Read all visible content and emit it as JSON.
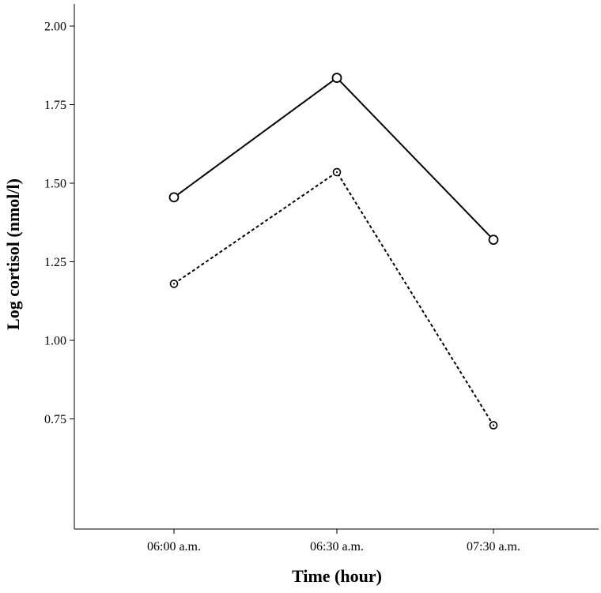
{
  "chart_data": {
    "type": "line",
    "xlabel": "Time (hour)",
    "ylabel": "Log cortisol (nmol/l)",
    "categories": [
      "06:00 a.m.",
      "06:30 a.m.",
      "07:30 a.m."
    ],
    "ylim": [
      0.4,
      2.07
    ],
    "yticks": [
      0.75,
      1.0,
      1.25,
      1.5,
      1.75,
      2.0
    ],
    "ytick_labels": [
      "0.75",
      "1.00",
      "1.25",
      "1.50",
      "1.75",
      "2.00"
    ],
    "grid": false,
    "legend": "none",
    "series": [
      {
        "values": [
          1.455,
          1.835,
          1.32
        ],
        "line_style": "solid",
        "marker": "open-circle",
        "color": "#000000"
      },
      {
        "values": [
          1.18,
          1.535,
          0.73
        ],
        "line_style": "dashed",
        "marker": "dotted-circle",
        "color": "#000000"
      }
    ]
  }
}
